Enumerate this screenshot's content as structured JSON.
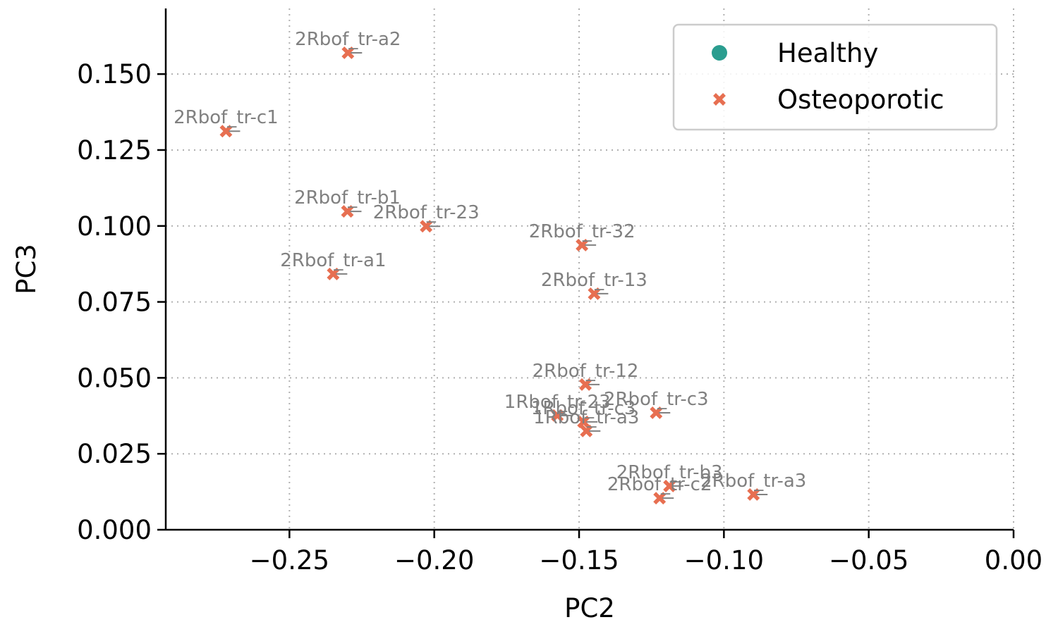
{
  "chart_data": {
    "type": "scatter",
    "title": "",
    "xlabel": "PC2",
    "ylabel": "PC3",
    "xlim": [
      -0.2927,
      0.0
    ],
    "ylim": [
      0.0,
      0.1716
    ],
    "xticks": [
      -0.25,
      -0.2,
      -0.15,
      -0.1,
      -0.05,
      0.0
    ],
    "xtick_labels": [
      "−0.25",
      "−0.20",
      "−0.15",
      "−0.10",
      "−0.05",
      "0.00"
    ],
    "yticks": [
      0.0,
      0.025,
      0.05,
      0.075,
      0.1,
      0.125,
      0.15
    ],
    "ytick_labels": [
      "0.000",
      "0.025",
      "0.050",
      "0.075",
      "0.100",
      "0.125",
      "0.150"
    ],
    "grid": true,
    "legend_position": "top-right",
    "legend": [
      {
        "label": "Healthy",
        "marker": "circle",
        "color": "#2a9d8f"
      },
      {
        "label": "Osteoporotic",
        "marker": "x",
        "color": "#e76f51"
      }
    ],
    "series": [
      {
        "name": "Healthy",
        "marker": "circle",
        "color": "#2a9d8f",
        "points": []
      },
      {
        "name": "Osteoporotic",
        "marker": "x",
        "color": "#e76f51",
        "points": [
          {
            "x": -0.2298,
            "y": 0.157,
            "label": "2Rbof_tr-a2"
          },
          {
            "x": -0.2719,
            "y": 0.1312,
            "label": "2Rbof_tr-c1"
          },
          {
            "x": -0.23,
            "y": 0.1048,
            "label": "2Rbof_tr-b1"
          },
          {
            "x": -0.2028,
            "y": 0.0999,
            "label": "2Rbof_tr-23"
          },
          {
            "x": -0.149,
            "y": 0.0937,
            "label": "2Rbof_tr-32"
          },
          {
            "x": -0.2349,
            "y": 0.0842,
            "label": "2Rbof_tr-a1"
          },
          {
            "x": -0.1448,
            "y": 0.0777,
            "label": "2Rbof_tr-13"
          },
          {
            "x": -0.1478,
            "y": 0.0478,
            "label": "2Rbof_tr-12"
          },
          {
            "x": -0.1575,
            "y": 0.0376,
            "label": "1Rbof_tr-23"
          },
          {
            "x": -0.1234,
            "y": 0.0385,
            "label": "2Rbof_tr-c3"
          },
          {
            "x": -0.1485,
            "y": 0.0355,
            "label": "1Rbof_tr-c3"
          },
          {
            "x": -0.1475,
            "y": 0.0325,
            "label": "1Rbof_tr-a3"
          },
          {
            "x": -0.1188,
            "y": 0.0144,
            "label": "2Rbof_tr-b3"
          },
          {
            "x": -0.1222,
            "y": 0.0104,
            "label": "2Rbof_tr-c2"
          },
          {
            "x": -0.0898,
            "y": 0.0116,
            "label": "2Rbof_tr-a3"
          }
        ]
      }
    ]
  }
}
